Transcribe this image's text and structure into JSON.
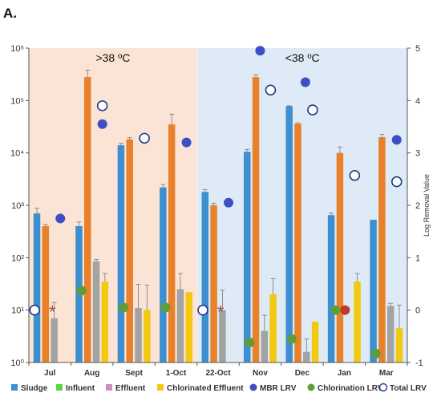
{
  "panel_label": "A.",
  "chart_data": {
    "type": "bar",
    "y_scale": "log",
    "ylim": [
      1,
      1000000
    ],
    "y_ticks": [
      "10⁰",
      "10¹",
      "10²",
      "10³",
      "10⁴",
      "10⁵",
      "10⁶"
    ],
    "y2label": "Log Removal Value",
    "y2lim": [
      -1,
      5
    ],
    "y2_ticks": [
      "-1",
      "0",
      "1",
      "2",
      "3",
      "4",
      "5"
    ],
    "grid": false,
    "legend_position": "bottom",
    "regions": [
      {
        "label": ">38 ºC",
        "color": "#fbe4d5",
        "categories": [
          "Jul",
          "Aug",
          "Sept",
          "1-Oct"
        ]
      },
      {
        "label": "<38 ºC",
        "color": "#deebf7",
        "categories": [
          "22-Oct",
          "Nov",
          "Dec",
          "Jan",
          "Mar"
        ]
      }
    ],
    "categories": [
      "Jul",
      "Aug",
      "Sept",
      "1-Oct",
      "22-Oct",
      "Nov",
      "Dec",
      "Jan",
      "Mar"
    ],
    "series": [
      {
        "name": "Sludge",
        "color": "#3d8fd0",
        "values": [
          700,
          400,
          14000,
          2200,
          1800,
          10500,
          78000,
          650,
          530
        ],
        "errors": [
          180,
          80,
          1200,
          300,
          200,
          1200,
          1500,
          60,
          null
        ]
      },
      {
        "name": "Influent",
        "color": "#e8812a",
        "legend_color": "#5dd43b",
        "values": [
          400,
          280000,
          18000,
          35000,
          1000,
          280000,
          36000,
          10000,
          20000
        ],
        "errors": [
          30,
          100000,
          1500,
          20000,
          100,
          30000,
          1500,
          3000,
          2500
        ]
      },
      {
        "name": "Effluent",
        "color": "#a3a3a3",
        "legend_color": "#c98fc4",
        "values": [
          7,
          85,
          11,
          25,
          10,
          4,
          1.6,
          null,
          12
        ],
        "errors": [
          7,
          8,
          20,
          25,
          14,
          4,
          1.2,
          null,
          1.5
        ]
      },
      {
        "name": "Chlorinated Effluent",
        "color": "#f2c811",
        "values": [
          null,
          35,
          10,
          22,
          null,
          20,
          6,
          35,
          4.5
        ],
        "errors": [
          null,
          15,
          20,
          0,
          null,
          20,
          0,
          15,
          8
        ]
      }
    ],
    "markers": [
      {
        "name": "MBR LRV",
        "style": "filled",
        "color": "#3d4fc4",
        "values": [
          1.75,
          3.55,
          null,
          3.2,
          2.05,
          4.95,
          4.35,
          null,
          3.25
        ]
      },
      {
        "name": "Chlorination LRV",
        "style": "filled",
        "color": "#5e9c3c",
        "values": [
          null,
          0.37,
          0.05,
          0.05,
          null,
          -0.62,
          -0.55,
          0.0,
          -0.83
        ]
      },
      {
        "name": "Total LRV",
        "style": "open",
        "color": "#1f3a8a",
        "values": [
          0,
          3.9,
          3.28,
          null,
          0,
          4.2,
          3.82,
          2.57,
          2.45
        ]
      }
    ],
    "annotations": [
      {
        "text": "*",
        "category": "Jul",
        "y": 10
      },
      {
        "text": "*",
        "category": "22-Oct",
        "y": 10
      }
    ],
    "highlight": {
      "category": "Jan",
      "lrv": 0.0,
      "color": "#c0392b"
    }
  }
}
